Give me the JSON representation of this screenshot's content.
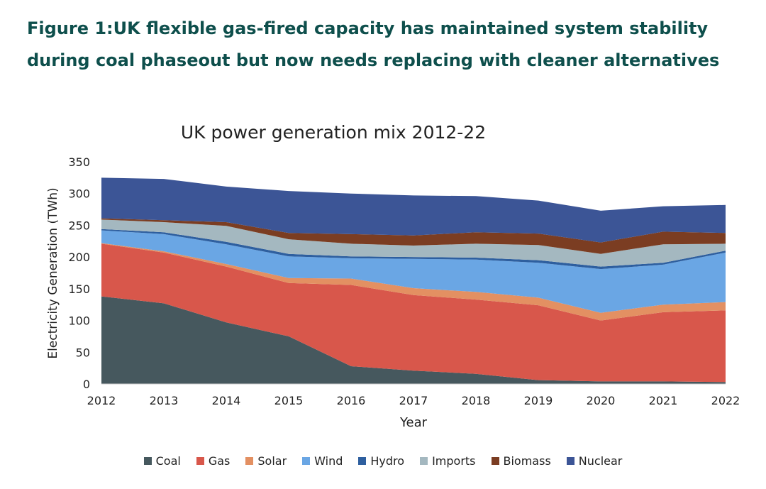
{
  "figure_title": "Figure 1:UK flexible gas-fired capacity has maintained system stability during coal phaseout but now needs replacing with cleaner alternatives",
  "chart_data": {
    "type": "area",
    "stacked": true,
    "title": "UK power generation mix 2012-22",
    "xlabel": "Year",
    "ylabel": "Electricity Generation (TWh)",
    "ylim": [
      0,
      350
    ],
    "yticks": [
      0,
      50,
      100,
      150,
      200,
      250,
      300,
      350
    ],
    "x": [
      "2012",
      "2013",
      "2014",
      "2015",
      "2016",
      "2017",
      "2018",
      "2019",
      "2020",
      "2021",
      "2022"
    ],
    "legend_position": "bottom",
    "grid": false,
    "series": [
      {
        "name": "Coal",
        "color": "#46585e",
        "values": [
          138,
          127,
          97,
          75,
          28,
          21,
          16,
          6,
          4,
          4,
          3
        ]
      },
      {
        "name": "Gas",
        "color": "#d8574b",
        "values": [
          83,
          80,
          88,
          84,
          128,
          119,
          117,
          118,
          96,
          109,
          113
        ]
      },
      {
        "name": "Solar",
        "color": "#e39062",
        "values": [
          1,
          2,
          4,
          8,
          10,
          11,
          12,
          12,
          12,
          12,
          13
        ]
      },
      {
        "name": "Wind",
        "color": "#6aa6e4",
        "values": [
          20,
          27,
          31,
          34,
          32,
          46,
          51,
          55,
          69,
          63,
          78
        ]
      },
      {
        "name": "Hydro",
        "color": "#2e5f9f",
        "values": [
          2,
          3,
          4,
          4,
          3,
          3,
          3,
          4,
          4,
          3,
          3
        ]
      },
      {
        "name": "Imports",
        "color": "#a4b8c0",
        "values": [
          15,
          16,
          25,
          23,
          20,
          18,
          22,
          24,
          20,
          29,
          11
        ]
      },
      {
        "name": "Biomass",
        "color": "#7b3d22",
        "values": [
          2,
          3,
          6,
          10,
          15,
          16,
          18,
          18,
          18,
          20,
          17
        ]
      },
      {
        "name": "Nuclear",
        "color": "#3c5596",
        "values": [
          64,
          65,
          56,
          66,
          64,
          63,
          57,
          52,
          50,
          40,
          44
        ]
      }
    ]
  }
}
